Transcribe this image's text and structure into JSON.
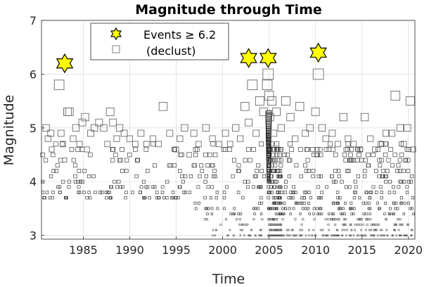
{
  "chart_data": {
    "type": "scatter",
    "title": "Magnitude through Time",
    "xlabel": "Time",
    "ylabel": "Magnitude",
    "xlim": [
      1980.5,
      2020.7
    ],
    "ylim": [
      2.93,
      7.0
    ],
    "x_ticks": [
      1985,
      1990,
      1995,
      2000,
      2005,
      2010,
      2015,
      2020
    ],
    "y_ticks": [
      3,
      4,
      5,
      6,
      7
    ],
    "grid": true,
    "legend": {
      "placement": "top-left",
      "entries": [
        {
          "label": "Events ≥ 6.2",
          "marker": "hexagram",
          "color": "#ffff00"
        },
        {
          "label": "(declust)",
          "marker": "square",
          "color": "#808080"
        }
      ]
    },
    "series": [
      {
        "name": "Events ≥ 6.2",
        "marker": "hexagram",
        "points": [
          {
            "x": 1983.0,
            "y": 6.2
          },
          {
            "x": 2002.8,
            "y": 6.3
          },
          {
            "x": 2004.9,
            "y": 6.3
          },
          {
            "x": 2010.3,
            "y": 6.4
          }
        ]
      },
      {
        "name": "(declust)",
        "marker": "square",
        "note": "events sized by magnitude; dense cluster 2004.9-2006",
        "points": [
          {
            "x": 1981.0,
            "y": 5.0
          },
          {
            "x": 1981.2,
            "y": 4.8
          },
          {
            "x": 1981.5,
            "y": 4.9
          },
          {
            "x": 1981.6,
            "y": 4.6
          },
          {
            "x": 1981.8,
            "y": 4.2
          },
          {
            "x": 1982.1,
            "y": 4.2
          },
          {
            "x": 1982.4,
            "y": 5.8
          },
          {
            "x": 1982.6,
            "y": 4.9
          },
          {
            "x": 1982.8,
            "y": 4.7
          },
          {
            "x": 1983.0,
            "y": 4.4
          },
          {
            "x": 1983.3,
            "y": 5.3
          },
          {
            "x": 1983.5,
            "y": 5.3
          },
          {
            "x": 1983.9,
            "y": 4.8
          },
          {
            "x": 1984.2,
            "y": 5.0
          },
          {
            "x": 1984.6,
            "y": 4.7
          },
          {
            "x": 1984.9,
            "y": 5.1
          },
          {
            "x": 1985.2,
            "y": 5.2
          },
          {
            "x": 1985.4,
            "y": 4.6
          },
          {
            "x": 1985.8,
            "y": 4.9
          },
          {
            "x": 1986.2,
            "y": 5.0
          },
          {
            "x": 1986.7,
            "y": 5.1
          },
          {
            "x": 1987.2,
            "y": 5.0
          },
          {
            "x": 1987.6,
            "y": 4.7
          },
          {
            "x": 1987.9,
            "y": 5.3
          },
          {
            "x": 1988.2,
            "y": 5.1
          },
          {
            "x": 1988.6,
            "y": 4.8
          },
          {
            "x": 1988.9,
            "y": 5.0
          },
          {
            "x": 1989.4,
            "y": 4.9
          },
          {
            "x": 1990.0,
            "y": 4.8
          },
          {
            "x": 1990.6,
            "y": 4.7
          },
          {
            "x": 1991.2,
            "y": 4.9
          },
          {
            "x": 1991.8,
            "y": 4.7
          },
          {
            "x": 1992.5,
            "y": 4.8
          },
          {
            "x": 1993.1,
            "y": 4.7
          },
          {
            "x": 1993.6,
            "y": 5.4
          },
          {
            "x": 1994.3,
            "y": 4.9
          },
          {
            "x": 1995.0,
            "y": 4.6
          },
          {
            "x": 1995.4,
            "y": 4.8
          },
          {
            "x": 1995.9,
            "y": 5.0
          },
          {
            "x": 1996.4,
            "y": 4.5
          },
          {
            "x": 1996.9,
            "y": 4.9
          },
          {
            "x": 1997.4,
            "y": 4.7
          },
          {
            "x": 1998.2,
            "y": 5.0
          },
          {
            "x": 1998.9,
            "y": 4.8
          },
          {
            "x": 1999.6,
            "y": 4.7
          },
          {
            "x": 2000.3,
            "y": 4.9
          },
          {
            "x": 2000.8,
            "y": 4.7
          },
          {
            "x": 2001.4,
            "y": 5.0
          },
          {
            "x": 2001.9,
            "y": 4.8
          },
          {
            "x": 2002.4,
            "y": 5.4
          },
          {
            "x": 2002.8,
            "y": 5.1
          },
          {
            "x": 2003.2,
            "y": 5.8
          },
          {
            "x": 2003.6,
            "y": 4.9
          },
          {
            "x": 2004.0,
            "y": 5.5
          },
          {
            "x": 2004.4,
            "y": 5.3
          },
          {
            "x": 2004.8,
            "y": 5.8
          },
          {
            "x": 2004.9,
            "y": 6.0
          },
          {
            "x": 2005.0,
            "y": 5.6
          },
          {
            "x": 2005.1,
            "y": 5.2
          },
          {
            "x": 2005.3,
            "y": 5.5
          },
          {
            "x": 2005.5,
            "y": 4.9
          },
          {
            "x": 2005.8,
            "y": 5.3
          },
          {
            "x": 2006.3,
            "y": 5.0
          },
          {
            "x": 2006.8,
            "y": 5.5
          },
          {
            "x": 2007.3,
            "y": 5.2
          },
          {
            "x": 2007.8,
            "y": 4.8
          },
          {
            "x": 2008.3,
            "y": 5.4
          },
          {
            "x": 2008.9,
            "y": 4.9
          },
          {
            "x": 2009.4,
            "y": 5.0
          },
          {
            "x": 2010.0,
            "y": 5.3
          },
          {
            "x": 2010.3,
            "y": 6.0
          },
          {
            "x": 2010.7,
            "y": 5.0
          },
          {
            "x": 2011.1,
            "y": 4.8
          },
          {
            "x": 2011.8,
            "y": 4.9
          },
          {
            "x": 2012.4,
            "y": 4.7
          },
          {
            "x": 2013.0,
            "y": 5.2
          },
          {
            "x": 2013.5,
            "y": 4.8
          },
          {
            "x": 2014.1,
            "y": 4.7
          },
          {
            "x": 2014.8,
            "y": 4.6
          },
          {
            "x": 2015.3,
            "y": 5.2
          },
          {
            "x": 2015.9,
            "y": 4.8
          },
          {
            "x": 2016.4,
            "y": 4.6
          },
          {
            "x": 2017.0,
            "y": 4.7
          },
          {
            "x": 2017.6,
            "y": 4.9
          },
          {
            "x": 2018.2,
            "y": 4.9
          },
          {
            "x": 2018.6,
            "y": 5.6
          },
          {
            "x": 2019.1,
            "y": 5.0
          },
          {
            "x": 2019.5,
            "y": 4.7
          },
          {
            "x": 2019.9,
            "y": 5.0
          },
          {
            "x": 2020.2,
            "y": 5.5
          },
          {
            "x": 2020.5,
            "y": 4.6
          }
        ]
      }
    ]
  }
}
